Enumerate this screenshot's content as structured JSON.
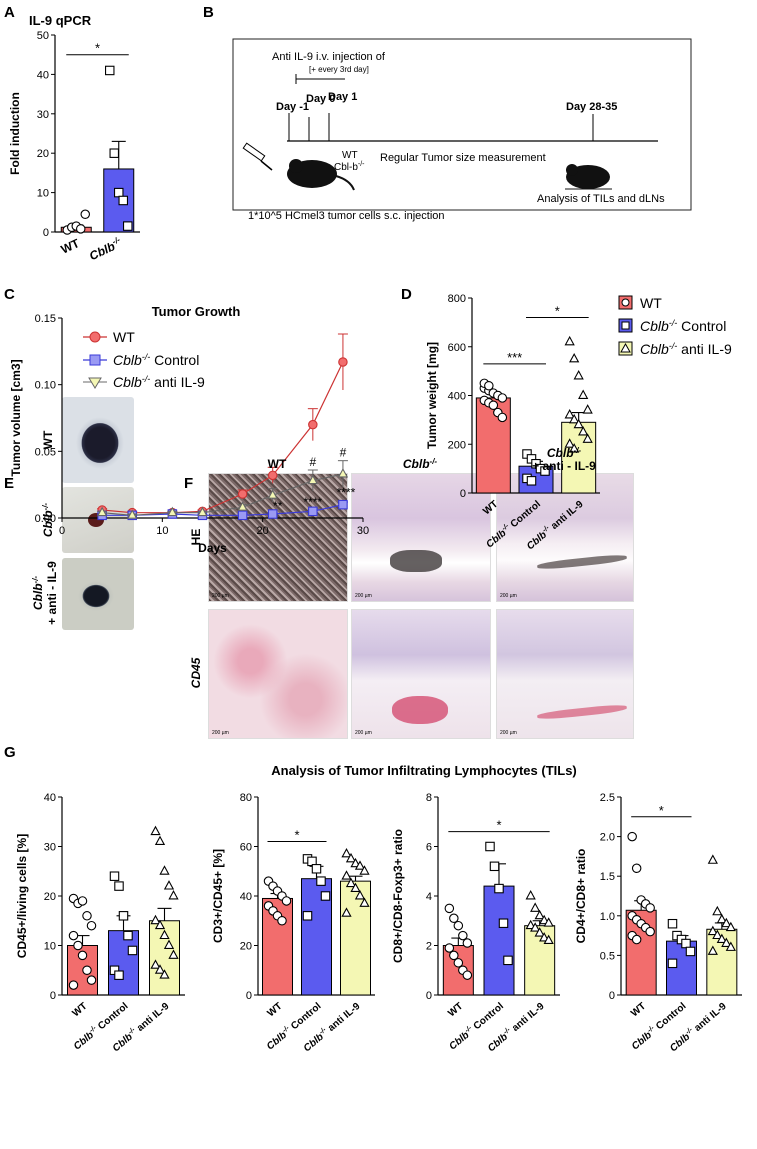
{
  "panel_letters": [
    "A",
    "B",
    "C",
    "D",
    "E",
    "F",
    "G"
  ],
  "colors": {
    "wt": "#f26d6d",
    "ctrl": "#5b5bef",
    "anti": "#f4f7b4",
    "sig": "#000000"
  },
  "panel_b": {
    "injection_line1": "Anti IL-9 i.v. injection of",
    "injection_line2": "[+ every 3rd day]",
    "day_m1": "Day -1",
    "day_0": "Day 0",
    "day_1": "Day 1",
    "day_end": "Day 28-35",
    "mouse_wt": "WT",
    "mouse_ko": "Cbl-b",
    "mouse_ko_sup": "-/-",
    "measure": "Regular Tumor size measurement",
    "cells": "1*10^5 HCmel3 tumor cells s.c. injection",
    "analysis": "Analysis of TILs and dLNs"
  },
  "panel_c_legend": {
    "wt": "WT",
    "ctrl_gene": "Cblb",
    "ctrl_sup": "-/-",
    "ctrl_text": " Control",
    "anti_gene": "Cblb",
    "anti_sup": "-/-",
    "anti_text": " anti IL-9"
  },
  "panel_e": {
    "wt": "WT",
    "ko_gene": "Cblb",
    "ko_sup": "-/-",
    "anti_gene": "Cblb",
    "anti_sup": "-/-",
    "anti_text": "+ anti - IL-9"
  },
  "panel_f": {
    "col_wt": "WT",
    "col_ko_gene": "Cblb",
    "col_ko_sup": "-/-",
    "col_anti_gene": "Cblb",
    "col_anti_sup": "-/-",
    "col_anti_text": "+ anti - IL-9",
    "row_he": "HE",
    "row_cd45": "CD45",
    "scale": "200 µm"
  },
  "panel_g_title": "Analysis of Tumor Infiltrating Lymphocytes (TILs)",
  "xcat": {
    "wt": "WT",
    "gene": "Cblb",
    "sup": "-/-",
    "control": "Control",
    "anti": "anti IL-9"
  },
  "chart_data": [
    {
      "id": "A",
      "type": "bar",
      "title": "IL-9 qPCR",
      "ylabel": "Fold induction",
      "ylim": [
        0,
        50
      ],
      "yticks": [
        0,
        10,
        20,
        30,
        40,
        50
      ],
      "categories": [
        "WT",
        "Cblb-/-"
      ],
      "values": [
        1.2,
        16
      ],
      "errors": [
        0.6,
        7
      ],
      "points": [
        [
          0.5,
          1.2,
          1.5,
          0.8,
          4.5
        ],
        [
          41,
          20,
          10,
          8,
          1.5
        ]
      ],
      "markers": [
        "circle",
        "square"
      ],
      "significance": [
        {
          "from": 0,
          "to": 1,
          "y": 45,
          "label": "*"
        }
      ]
    },
    {
      "id": "C",
      "type": "line",
      "title": "Tumor Growth",
      "xlabel": "Days",
      "ylabel": "Tumor volume [cm3]",
      "xlim": [
        0,
        30
      ],
      "ylim": [
        0,
        0.15
      ],
      "xticks": [
        0,
        10,
        20,
        30
      ],
      "yticks": [
        0,
        0.05,
        0.1,
        0.15
      ],
      "series": [
        {
          "name": "WT",
          "x": [
            4,
            7,
            11,
            14,
            18,
            21,
            25,
            28
          ],
          "y": [
            0.006,
            0.004,
            0.004,
            0.005,
            0.018,
            0.032,
            0.07,
            0.117
          ],
          "err": [
            0.001,
            0.001,
            0.001,
            0.001,
            0.003,
            0.006,
            0.012,
            0.021
          ]
        },
        {
          "name": "Cblb-/- Control",
          "x": [
            4,
            7,
            11,
            14,
            18,
            21,
            25,
            28
          ],
          "y": [
            0.002,
            0.002,
            0.003,
            0.002,
            0.002,
            0.003,
            0.005,
            0.01
          ],
          "err": [
            0.0005,
            0.0005,
            0.0005,
            0.0005,
            0.001,
            0.001,
            0.0015,
            0.002
          ]
        },
        {
          "name": "Cblb-/- anti IL-9",
          "x": [
            4,
            7,
            11,
            14,
            18,
            21,
            25,
            28
          ],
          "y": [
            0.004,
            0.002,
            0.004,
            0.004,
            0.008,
            0.017,
            0.028,
            0.033
          ],
          "err": [
            0.001,
            0.001,
            0.001,
            0.001,
            0.002,
            0.005,
            0.008,
            0.01
          ]
        }
      ],
      "annotations": [
        {
          "x": 21.5,
          "y": 0.006,
          "text": "**"
        },
        {
          "x": 25,
          "y": 0.009,
          "text": "****"
        },
        {
          "x": 28.3,
          "y": 0.016,
          "text": "****"
        },
        {
          "x": 25,
          "y": 0.039,
          "text": "#"
        },
        {
          "x": 28,
          "y": 0.046,
          "text": "#"
        }
      ]
    },
    {
      "id": "D",
      "type": "bar",
      "ylabel": "Tumor weight [mg]",
      "ylim": [
        0,
        800
      ],
      "yticks": [
        0,
        200,
        400,
        600,
        800
      ],
      "categories": [
        "WT",
        "Cblb-/- Control",
        "Cblb-/- anti IL-9"
      ],
      "values": [
        390,
        110,
        290
      ],
      "errors": [
        25,
        20,
        40
      ],
      "points": [
        [
          430,
          420,
          410,
          400,
          390,
          380,
          370,
          360,
          330,
          310,
          450,
          440
        ],
        [
          160,
          140,
          120,
          100,
          90,
          60,
          50
        ],
        [
          620,
          550,
          480,
          400,
          340,
          320,
          300,
          280,
          250,
          220,
          200,
          180
        ]
      ],
      "markers": [
        "circle",
        "square",
        "triangle"
      ],
      "significance": [
        {
          "from": 0,
          "to": 1,
          "y": 530,
          "label": "***"
        },
        {
          "from": 1,
          "to": 2,
          "y": 720,
          "label": "*"
        }
      ]
    },
    {
      "id": "G1",
      "type": "bar",
      "ylabel": "CD45+/living cells [%]",
      "ylim": [
        0,
        40
      ],
      "yticks": [
        0,
        10,
        20,
        30,
        40
      ],
      "categories": [
        "WT",
        "Cblb-/- Control",
        "Cblb-/- anti IL-9"
      ],
      "values": [
        10,
        13,
        15
      ],
      "errors": [
        2,
        3,
        2.5
      ],
      "points": [
        [
          19.5,
          18.5,
          19,
          16,
          14,
          12,
          10,
          8,
          5,
          3,
          2
        ],
        [
          24,
          22,
          16,
          12,
          9,
          5,
          4
        ],
        [
          33,
          31,
          25,
          22,
          20,
          15,
          14,
          12,
          10,
          8,
          6,
          5,
          4
        ]
      ],
      "markers": [
        "circle",
        "square",
        "triangle"
      ],
      "significance": []
    },
    {
      "id": "G2",
      "type": "bar",
      "ylabel": "CD3+/CD45+ [%]",
      "ylim": [
        0,
        80
      ],
      "yticks": [
        0,
        20,
        40,
        60,
        80
      ],
      "categories": [
        "WT",
        "Cblb-/- Control",
        "Cblb-/- anti IL-9"
      ],
      "values": [
        39,
        47,
        46
      ],
      "errors": [
        2,
        5,
        2
      ],
      "points": [
        [
          46,
          44,
          42,
          40,
          38,
          36,
          34,
          32,
          30
        ],
        [
          55,
          54,
          51,
          46,
          40,
          32
        ],
        [
          57,
          55,
          53,
          52,
          50,
          48,
          45,
          43,
          40,
          37,
          33
        ]
      ],
      "markers": [
        "circle",
        "square",
        "triangle"
      ],
      "significance": [
        {
          "from": 0,
          "to": 1,
          "y": 62,
          "label": "*"
        }
      ]
    },
    {
      "id": "G3",
      "type": "bar",
      "ylabel": "CD8+/CD8-Foxp3+ ratio",
      "ylim": [
        0,
        8
      ],
      "yticks": [
        0,
        2,
        4,
        6,
        8
      ],
      "categories": [
        "WT",
        "Cblb-/- Control",
        "Cblb-/- anti IL-9"
      ],
      "values": [
        2.0,
        4.4,
        2.8
      ],
      "errors": [
        0.3,
        0.9,
        0.2
      ],
      "points": [
        [
          3.5,
          3.1,
          2.8,
          2.4,
          2.1,
          1.9,
          1.6,
          1.3,
          1.0,
          0.8
        ],
        [
          6.0,
          5.2,
          4.3,
          2.9,
          1.4
        ],
        [
          4.0,
          3.5,
          3.2,
          3.0,
          2.9,
          2.8,
          2.7,
          2.5,
          2.3,
          2.2
        ]
      ],
      "markers": [
        "circle",
        "square",
        "triangle"
      ],
      "significance": [
        {
          "from": 0,
          "to": 2,
          "y": 6.6,
          "label": "*"
        }
      ]
    },
    {
      "id": "G4",
      "type": "bar",
      "ylabel": "CD4+/CD8+ ratio",
      "ylim": [
        0,
        2.5
      ],
      "yticks": [
        0,
        0.5,
        1.0,
        1.5,
        2.0,
        2.5
      ],
      "categories": [
        "WT",
        "Cblb-/- Control",
        "Cblb-/- anti IL-9"
      ],
      "values": [
        1.07,
        0.68,
        0.83
      ],
      "errors": [
        0.12,
        0.07,
        0.08
      ],
      "points": [
        [
          2.0,
          1.6,
          1.2,
          1.15,
          1.1,
          1.0,
          0.95,
          0.9,
          0.85,
          0.8,
          0.75,
          0.7
        ],
        [
          0.9,
          0.75,
          0.7,
          0.65,
          0.55,
          0.4
        ],
        [
          1.7,
          1.05,
          0.95,
          0.9,
          0.85,
          0.8,
          0.75,
          0.7,
          0.65,
          0.6,
          0.55
        ]
      ],
      "markers": [
        "circle",
        "square",
        "triangle"
      ],
      "significance": [
        {
          "from": 0,
          "to": 1,
          "y": 2.25,
          "label": "*"
        }
      ]
    }
  ]
}
